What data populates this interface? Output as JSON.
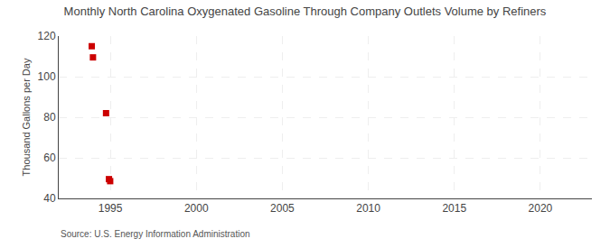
{
  "chart_data": {
    "type": "scatter",
    "title": "Monthly North Carolina Oxygenated Gasoline Through Company Outlets Volume by Refiners",
    "ylabel": "Thousand Gallons per Day",
    "annotations": [
      "Source: U.S. Energy Information Administration"
    ],
    "x": [
      1993.92,
      1993.99,
      1994.75,
      1994.92,
      1994.99
    ],
    "values": [
      115.0,
      109.5,
      82.0,
      49.5,
      48.5
    ],
    "color": "#cc0000",
    "marker": "square",
    "xlim": [
      1992,
      2023
    ],
    "ylim": [
      40,
      120
    ],
    "xticks": [
      1995,
      2000,
      2005,
      2010,
      2015,
      2020
    ],
    "yticks": [
      40,
      60,
      80,
      100,
      120
    ],
    "grid": true
  }
}
